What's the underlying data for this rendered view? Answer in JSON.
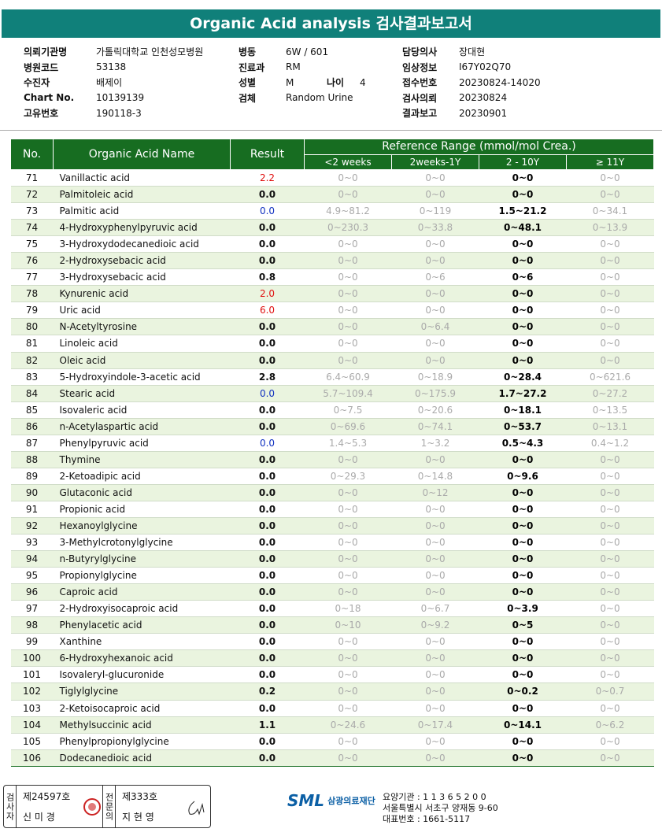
{
  "header": {
    "title": "Organic Acid analysis 검사결과보고서"
  },
  "info": {
    "columns": [
      [
        {
          "label": "의뢰기관명",
          "value": "가톨릭대학교 인천성모병원"
        },
        {
          "label": "병원코드",
          "value": "53138"
        },
        {
          "label": "수진자",
          "value": "배제이"
        },
        {
          "label": "Chart No.",
          "value": "10139139"
        },
        {
          "label": "고유번호",
          "value": "190118-3"
        }
      ],
      [
        {
          "label": "병동",
          "value": "6W / 601"
        },
        {
          "label": "진료과",
          "value": "RM"
        },
        {
          "label": "성별",
          "value": "M",
          "extra_label": "나이",
          "extra_value": "4"
        },
        {
          "label": "검체",
          "value": "Random Urine"
        }
      ],
      [
        {
          "label": "담당의사",
          "value": "장대현"
        },
        {
          "label": "임상정보",
          "value": "I67Y02Q70"
        },
        {
          "label": "접수번호",
          "value": "20230824-14020"
        },
        {
          "label": "검사의뢰",
          "value": "20230824"
        },
        {
          "label": "결과보고",
          "value": "20230901"
        }
      ]
    ]
  },
  "table": {
    "headers": {
      "no": "No.",
      "name": "Organic Acid Name",
      "result": "Result",
      "reference": "Reference Range (mmol/mol Crea.)",
      "ranges": [
        "<2 weeks",
        "2weeks-1Y",
        "2 - 10Y",
        "≥ 11Y"
      ]
    },
    "rows": [
      {
        "no": "71",
        "name": "Vanillactic acid",
        "result": "2.2",
        "color": "#e01010",
        "ranges": [
          "0~0",
          "0~0",
          "0~0",
          "0~0"
        ]
      },
      {
        "no": "72",
        "name": "Palmitoleic acid",
        "result": "0.0",
        "ranges": [
          "0~0",
          "0~0",
          "0~0",
          "0~0"
        ]
      },
      {
        "no": "73",
        "name": "Palmitic acid",
        "result": "0.0",
        "color": "#1030c0",
        "ranges": [
          "4.9~81.2",
          "0~119",
          "1.5~21.2",
          "0~34.1"
        ]
      },
      {
        "no": "74",
        "name": "4-Hydroxyphenylpyruvic acid",
        "result": "0.0",
        "ranges": [
          "0~230.3",
          "0~33.8",
          "0~48.1",
          "0~13.9"
        ]
      },
      {
        "no": "75",
        "name": "3-Hydroxydodecanedioic acid",
        "result": "0.0",
        "ranges": [
          "0~0",
          "0~0",
          "0~0",
          "0~0"
        ]
      },
      {
        "no": "76",
        "name": "2-Hydroxysebacic acid",
        "result": "0.0",
        "ranges": [
          "0~0",
          "0~0",
          "0~0",
          "0~0"
        ]
      },
      {
        "no": "77",
        "name": "3-Hydroxysebacic acid",
        "result": "0.8",
        "ranges": [
          "0~0",
          "0~6",
          "0~6",
          "0~0"
        ]
      },
      {
        "no": "78",
        "name": "Kynurenic acid",
        "result": "2.0",
        "color": "#e01010",
        "ranges": [
          "0~0",
          "0~0",
          "0~0",
          "0~0"
        ]
      },
      {
        "no": "79",
        "name": "Uric acid",
        "result": "6.0",
        "color": "#e01010",
        "ranges": [
          "0~0",
          "0~0",
          "0~0",
          "0~0"
        ]
      },
      {
        "no": "80",
        "name": "N-Acetyltyrosine",
        "result": "0.0",
        "ranges": [
          "0~0",
          "0~6.4",
          "0~0",
          "0~0"
        ]
      },
      {
        "no": "81",
        "name": "Linoleic acid",
        "result": "0.0",
        "ranges": [
          "0~0",
          "0~0",
          "0~0",
          "0~0"
        ]
      },
      {
        "no": "82",
        "name": "Oleic acid",
        "result": "0.0",
        "ranges": [
          "0~0",
          "0~0",
          "0~0",
          "0~0"
        ]
      },
      {
        "no": "83",
        "name": "5-Hydroxyindole-3-acetic acid",
        "result": "2.8",
        "ranges": [
          "6.4~60.9",
          "0~18.9",
          "0~28.4",
          "0~621.6"
        ]
      },
      {
        "no": "84",
        "name": "Stearic acid",
        "result": "0.0",
        "color": "#1030c0",
        "ranges": [
          "5.7~109.4",
          "0~175.9",
          "1.7~27.2",
          "0~27.2"
        ]
      },
      {
        "no": "85",
        "name": "Isovaleric acid",
        "result": "0.0",
        "ranges": [
          "0~7.5",
          "0~20.6",
          "0~18.1",
          "0~13.5"
        ]
      },
      {
        "no": "86",
        "name": "n-Acetylaspartic acid",
        "result": "0.0",
        "ranges": [
          "0~69.6",
          "0~74.1",
          "0~53.7",
          "0~13.1"
        ]
      },
      {
        "no": "87",
        "name": "Phenylpyruvic acid",
        "result": "0.0",
        "color": "#1030c0",
        "ranges": [
          "1.4~5.3",
          "1~3.2",
          "0.5~4.3",
          "0.4~1.2"
        ]
      },
      {
        "no": "88",
        "name": "Thymine",
        "result": "0.0",
        "ranges": [
          "0~0",
          "0~0",
          "0~0",
          "0~0"
        ]
      },
      {
        "no": "89",
        "name": "2-Ketoadipic acid",
        "result": "0.0",
        "ranges": [
          "0~29.3",
          "0~14.8",
          "0~9.6",
          "0~0"
        ]
      },
      {
        "no": "90",
        "name": "Glutaconic acid",
        "result": "0.0",
        "ranges": [
          "0~0",
          "0~12",
          "0~0",
          "0~0"
        ]
      },
      {
        "no": "91",
        "name": "Propionic acid",
        "result": "0.0",
        "ranges": [
          "0~0",
          "0~0",
          "0~0",
          "0~0"
        ]
      },
      {
        "no": "92",
        "name": "Hexanoylglycine",
        "result": "0.0",
        "ranges": [
          "0~0",
          "0~0",
          "0~0",
          "0~0"
        ]
      },
      {
        "no": "93",
        "name": "3-Methylcrotonylglycine",
        "result": "0.0",
        "ranges": [
          "0~0",
          "0~0",
          "0~0",
          "0~0"
        ]
      },
      {
        "no": "94",
        "name": "n-Butyrylglycine",
        "result": "0.0",
        "ranges": [
          "0~0",
          "0~0",
          "0~0",
          "0~0"
        ]
      },
      {
        "no": "95",
        "name": "Propionylglycine",
        "result": "0.0",
        "ranges": [
          "0~0",
          "0~0",
          "0~0",
          "0~0"
        ]
      },
      {
        "no": "96",
        "name": "Caproic acid",
        "result": "0.0",
        "ranges": [
          "0~0",
          "0~0",
          "0~0",
          "0~0"
        ]
      },
      {
        "no": "97",
        "name": "2-Hydroxyisocaproic acid",
        "result": "0.0",
        "ranges": [
          "0~18",
          "0~6.7",
          "0~3.9",
          "0~0"
        ]
      },
      {
        "no": "98",
        "name": "Phenylacetic acid",
        "result": "0.0",
        "ranges": [
          "0~10",
          "0~9.2",
          "0~5",
          "0~0"
        ]
      },
      {
        "no": "99",
        "name": "Xanthine",
        "result": "0.0",
        "ranges": [
          "0~0",
          "0~0",
          "0~0",
          "0~0"
        ]
      },
      {
        "no": "100",
        "name": "6-Hydroxyhexanoic acid",
        "result": "0.0",
        "ranges": [
          "0~0",
          "0~0",
          "0~0",
          "0~0"
        ]
      },
      {
        "no": "101",
        "name": "Isovaleryl-glucuronide",
        "result": "0.0",
        "ranges": [
          "0~0",
          "0~0",
          "0~0",
          "0~0"
        ]
      },
      {
        "no": "102",
        "name": "Tiglylglycine",
        "result": "0.2",
        "ranges": [
          "0~0",
          "0~0",
          "0~0.2",
          "0~0.7"
        ]
      },
      {
        "no": "103",
        "name": "2-Ketoisocaproic acid",
        "result": "0.0",
        "ranges": [
          "0~0",
          "0~0",
          "0~0",
          "0~0"
        ]
      },
      {
        "no": "104",
        "name": "Methylsuccinic acid",
        "result": "1.1",
        "ranges": [
          "0~24.6",
          "0~17.4",
          "0~14.1",
          "0~6.2"
        ]
      },
      {
        "no": "105",
        "name": "Phenylpropionylglycine",
        "result": "0.0",
        "ranges": [
          "0~0",
          "0~0",
          "0~0",
          "0~0"
        ]
      },
      {
        "no": "106",
        "name": "Dodecanedioic acid",
        "result": "0.0",
        "ranges": [
          "0~0",
          "0~0",
          "0~0",
          "0~0"
        ]
      }
    ]
  },
  "footer": {
    "examiner_label": "검사자",
    "examiner_no": "제24597호",
    "examiner_name": "신 미 경",
    "specialist_label": "전문의",
    "specialist_no": "제333호",
    "specialist_name": "지 현 영",
    "logo": "SML",
    "org": "삼광의료재단",
    "address_lines": [
      "요양기관 : 1 1 3 6 5 2 0 0",
      "서울특별시 서초구 양재동 9-60",
      "대표번호 : 1661-5117"
    ]
  }
}
